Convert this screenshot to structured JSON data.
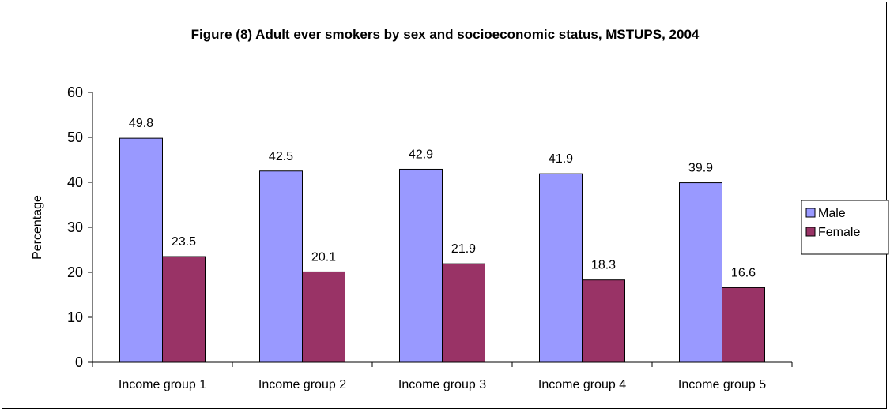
{
  "chart_data": {
    "type": "bar",
    "title": "Figure (8) Adult ever smokers by sex and socioeconomic status, MSTUPS, 2004",
    "xlabel": "",
    "ylabel": "Percentage",
    "ylim": [
      0,
      60
    ],
    "yticks": [
      "0",
      "10",
      "20",
      "30",
      "40",
      "50",
      "60"
    ],
    "grid": false,
    "legend_position": "right",
    "categories": [
      "Income group 1",
      "Income group 2",
      "Income group 3",
      "Income group 4",
      "Income group 5"
    ],
    "series": [
      {
        "name": "Male",
        "color": "#9999ff",
        "values": [
          49.8,
          42.5,
          42.9,
          41.9,
          39.9
        ]
      },
      {
        "name": "Female",
        "color": "#993366",
        "values": [
          23.5,
          20.1,
          21.9,
          18.3,
          16.6
        ]
      }
    ]
  }
}
